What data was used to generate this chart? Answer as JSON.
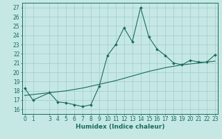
{
  "xlabel": "Humidex (Indice chaleur)",
  "bg_color": "#c5e8e5",
  "line_color": "#1a6b5a",
  "grid_color": "#a8d0cc",
  "x_data": [
    0,
    1,
    3,
    4,
    5,
    6,
    7,
    8,
    9,
    10,
    11,
    12,
    13,
    14,
    15,
    16,
    17,
    18,
    19,
    20,
    21,
    22,
    23
  ],
  "y_curve": [
    18.3,
    17.0,
    17.8,
    16.8,
    16.7,
    16.5,
    16.3,
    16.5,
    18.5,
    21.8,
    23.0,
    24.8,
    23.3,
    27.0,
    23.8,
    22.5,
    21.8,
    21.0,
    20.8,
    21.3,
    21.1,
    21.1,
    21.9
  ],
  "y_trend": [
    17.5,
    17.6,
    17.8,
    17.9,
    18.0,
    18.15,
    18.3,
    18.5,
    18.7,
    18.9,
    19.1,
    19.35,
    19.6,
    19.85,
    20.1,
    20.3,
    20.5,
    20.65,
    20.8,
    20.9,
    21.0,
    21.1,
    21.2
  ],
  "ylim": [
    15.5,
    27.5
  ],
  "yticks": [
    16,
    17,
    18,
    19,
    20,
    21,
    22,
    23,
    24,
    25,
    26,
    27
  ],
  "xticks": [
    0,
    1,
    3,
    4,
    5,
    6,
    7,
    8,
    9,
    10,
    11,
    12,
    13,
    14,
    15,
    16,
    17,
    18,
    19,
    20,
    21,
    22,
    23
  ],
  "xlim": [
    -0.3,
    23.3
  ],
  "tick_fontsize": 5.5,
  "xlabel_fontsize": 6.5
}
